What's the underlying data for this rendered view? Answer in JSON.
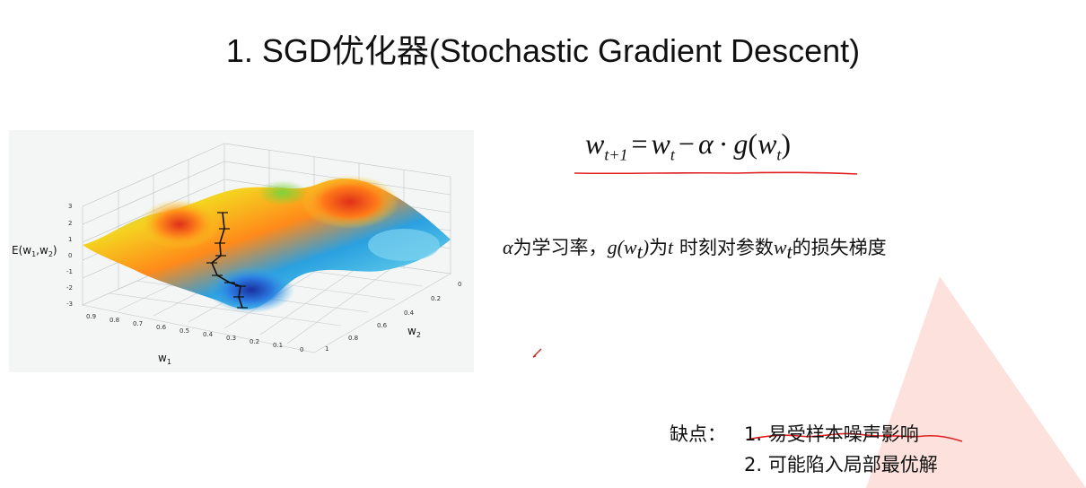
{
  "title": "1. SGD优化器(Stochastic Gradient Descent)",
  "formula": {
    "w": "w",
    "t_plus_1": "t+1",
    "equals": "=",
    "t": "t",
    "minus": "−",
    "alpha": "α",
    "cdot": "·",
    "g": "g",
    "open_paren": "(",
    "close_paren": ")"
  },
  "description": {
    "alpha": "α",
    "part1": "为学习率，",
    "g_of": "g(w",
    "t": "t",
    "close": ")",
    "part2": "为",
    "t_var": "t",
    "part3": " 时刻对参数",
    "w": "w",
    "part4": "的损失梯度"
  },
  "cons": {
    "label": "缺点：",
    "items": [
      "1. 易受样本噪声影响",
      "2. 可能陷入局部最优解"
    ]
  },
  "plot": {
    "z_label": "E(w",
    "z_label_sub1": "1",
    "z_label_mid": ",w",
    "z_label_sub2": "2",
    "z_label_end": ")",
    "x_label": "w",
    "x_label_sub": "1",
    "y_label": "w",
    "y_label_sub": "2",
    "z_ticks": [
      "3",
      "2",
      "1",
      "0",
      "-1",
      "-2",
      "-3"
    ],
    "x_ticks": [
      "0.9",
      "0.8",
      "0.7",
      "0.6",
      "0.5",
      "0.4",
      "0.3",
      "0.2",
      "0.1",
      "0"
    ],
    "y_ticks": [
      "0",
      "0.2",
      "0.4",
      "0.6",
      "0.8",
      "1"
    ]
  },
  "colors": {
    "annotation_red": "#e02020",
    "triangle": "#f7c9c1"
  }
}
